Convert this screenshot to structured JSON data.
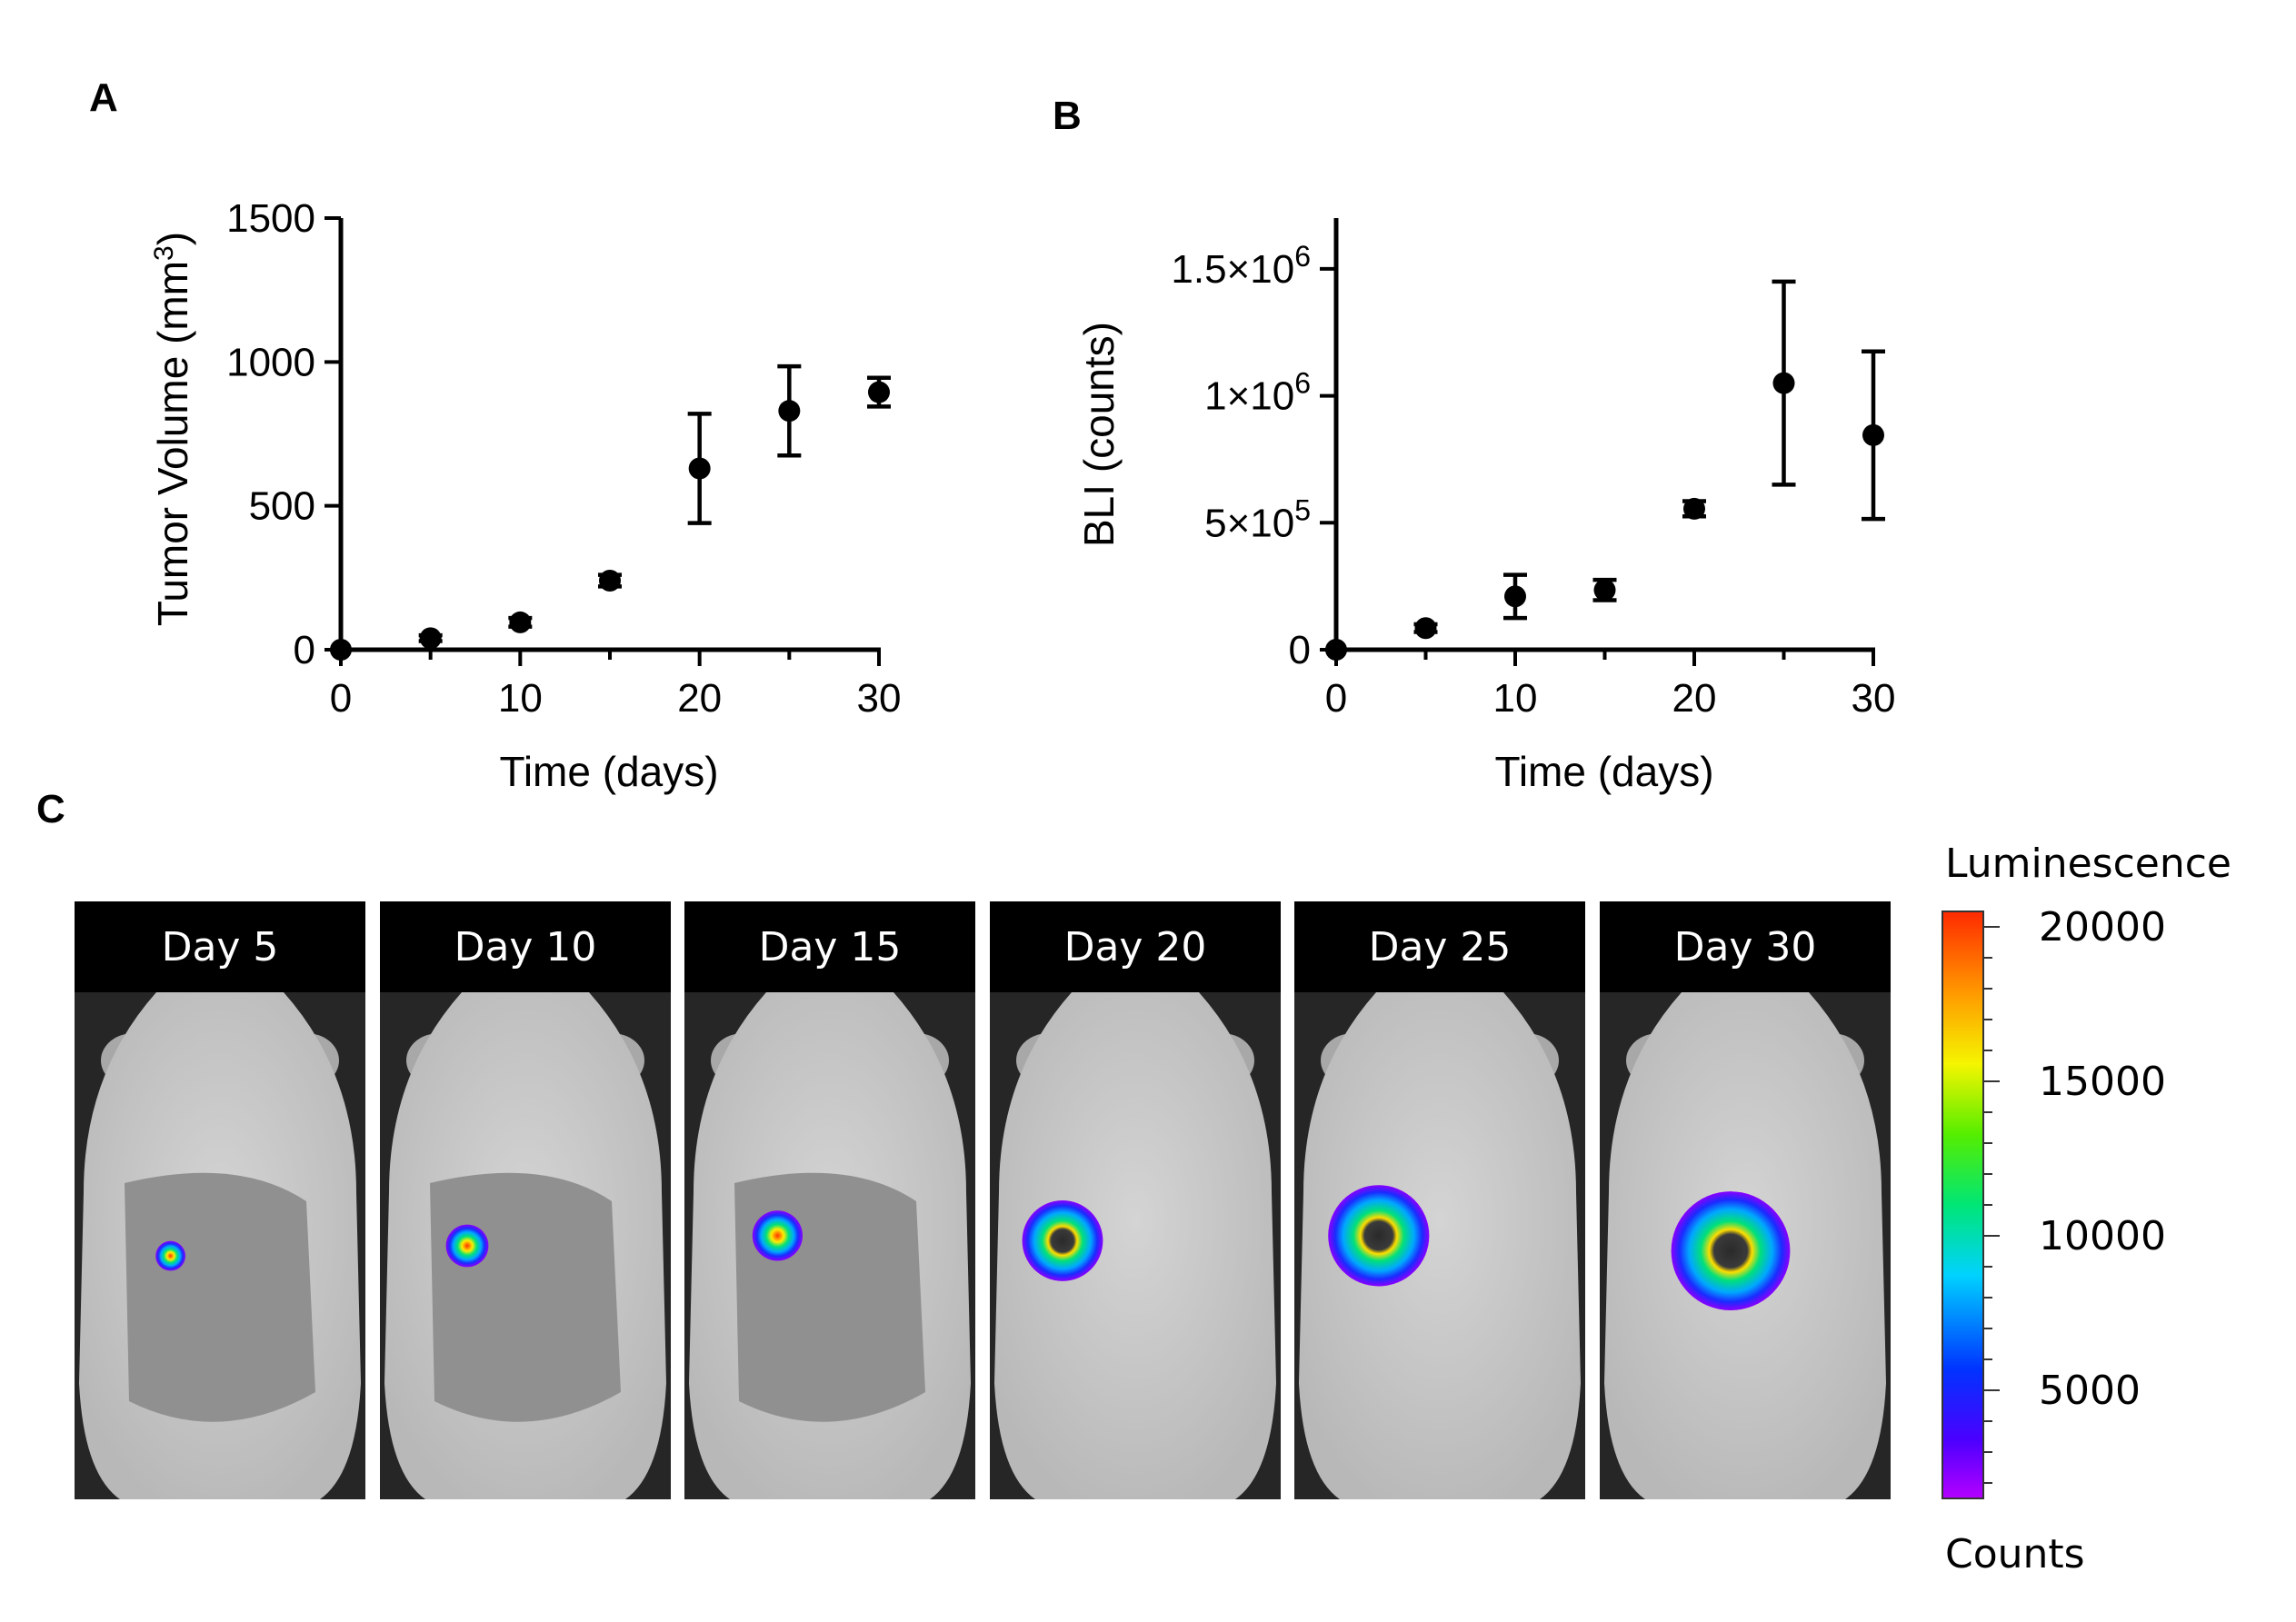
{
  "panels": {
    "a": "A",
    "b": "B",
    "c": "C"
  },
  "chart_data": [
    {
      "id": "A",
      "type": "scatter",
      "title": "",
      "xlabel": "Time (days)",
      "ylabel": "Tumor Volume (mm³)",
      "ylabel_main": "Tumor Volume (mm",
      "ylabel_sup": "3",
      "ylabel_end": ")",
      "xlim": [
        0,
        30
      ],
      "ylim": [
        0,
        1500
      ],
      "xticks": [
        0,
        10,
        20,
        30
      ],
      "xtick_labels": [
        "0",
        "10",
        "20",
        "30"
      ],
      "yticks": [
        0,
        500,
        1000,
        1500
      ],
      "ytick_labels": [
        "0",
        "500",
        "1000",
        "1500"
      ],
      "series": [
        {
          "name": "Tumor Volume",
          "x": [
            0,
            5,
            10,
            15,
            20,
            25,
            30
          ],
          "y": [
            0,
            40,
            95,
            240,
            630,
            830,
            895
          ],
          "err": [
            0,
            10,
            15,
            20,
            190,
            155,
            50
          ]
        }
      ]
    },
    {
      "id": "B",
      "type": "scatter",
      "title": "",
      "xlabel": "Time (days)",
      "ylabel": "BLI (counts)",
      "xlim": [
        0,
        30
      ],
      "ylim": [
        0,
        1700000
      ],
      "xticks": [
        0,
        10,
        20,
        30
      ],
      "xtick_labels": [
        "0",
        "10",
        "20",
        "30"
      ],
      "yticks": [
        0,
        500000,
        1000000,
        1500000
      ],
      "ytick_labels": [
        {
          "base": "0",
          "exp": ""
        },
        {
          "base": "5×10",
          "exp": "5"
        },
        {
          "base": "1×10",
          "exp": "6"
        },
        {
          "base": "1.5×10",
          "exp": "6"
        }
      ],
      "series": [
        {
          "name": "BLI",
          "x": [
            0,
            5,
            10,
            15,
            20,
            25,
            30
          ],
          "y": [
            0,
            85000,
            210000,
            235000,
            555000,
            1050000,
            845000
          ],
          "err": [
            0,
            15000,
            85000,
            40000,
            30000,
            400000,
            330000
          ]
        }
      ]
    }
  ],
  "imaging": {
    "days": [
      "Day 5",
      "Day 10",
      "Day 15",
      "Day 20",
      "Day 25",
      "Day 30"
    ],
    "signal_scale": [
      0.12,
      0.22,
      0.28,
      0.52,
      0.68,
      0.82
    ]
  },
  "colorbar": {
    "title": "Luminescence",
    "unit": "Counts",
    "min": 1500,
    "max": 20500,
    "ticks": [
      20000,
      15000,
      10000,
      5000
    ],
    "tick_labels": [
      "20000",
      "15000",
      "10000",
      "5000"
    ]
  }
}
